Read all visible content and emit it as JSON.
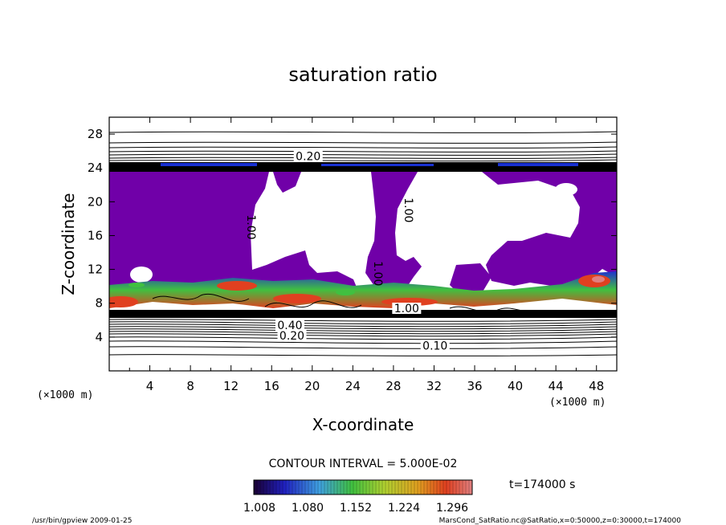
{
  "chart_data": {
    "type": "heatmap",
    "title": "saturation ratio",
    "xlabel": "X-coordinate",
    "ylabel": "Z-coordinate",
    "x_unit": "(×1000 m)",
    "y_unit": "(×1000 m)",
    "xlim": [
      0,
      50
    ],
    "ylim": [
      0,
      30
    ],
    "x_ticks": [
      4,
      8,
      12,
      16,
      20,
      24,
      28,
      32,
      36,
      40,
      44,
      48
    ],
    "y_ticks": [
      4,
      8,
      12,
      16,
      20,
      24,
      28
    ],
    "contour_interval_text": "CONTOUR INTERVAL = 5.000E-02",
    "time_text": "t=174000 s",
    "colorbar": {
      "labels": [
        "1.008",
        "1.080",
        "1.152",
        "1.224",
        "1.296"
      ],
      "colors": [
        "#1a0033",
        "#2020c0",
        "#3fa0e0",
        "#40c040",
        "#b0d030",
        "#e0a020",
        "#e04020",
        "#e08080"
      ]
    },
    "contour_labels": [
      {
        "text": "0.20",
        "x": 19.6,
        "z": 25.4,
        "rotate": 0
      },
      {
        "text": "1.00",
        "x": 14.0,
        "z": 17.0,
        "rotate": 90
      },
      {
        "text": "1.00",
        "x": 29.5,
        "z": 19.0,
        "rotate": 90
      },
      {
        "text": "1.00",
        "x": 26.5,
        "z": 11.5,
        "rotate": 90
      },
      {
        "text": "1.00",
        "x": 29.3,
        "z": 7.4,
        "rotate": 0
      },
      {
        "text": "0.20",
        "x": 18.0,
        "z": 4.2,
        "rotate": 0
      },
      {
        "text": "0.40",
        "x": 17.8,
        "z": 5.4,
        "rotate": 0
      },
      {
        "text": "0.10",
        "x": 32.1,
        "z": 3.0,
        "rotate": 0
      }
    ],
    "colors": {
      "saturated": "#7000a8",
      "contour": "#000000"
    }
  },
  "footer": {
    "left": "/usr/bin/gpview  2009-01-25",
    "right": "MarsCond_SatRatio.nc@SatRatio,x=0:50000,z=0:30000,t=174000"
  }
}
